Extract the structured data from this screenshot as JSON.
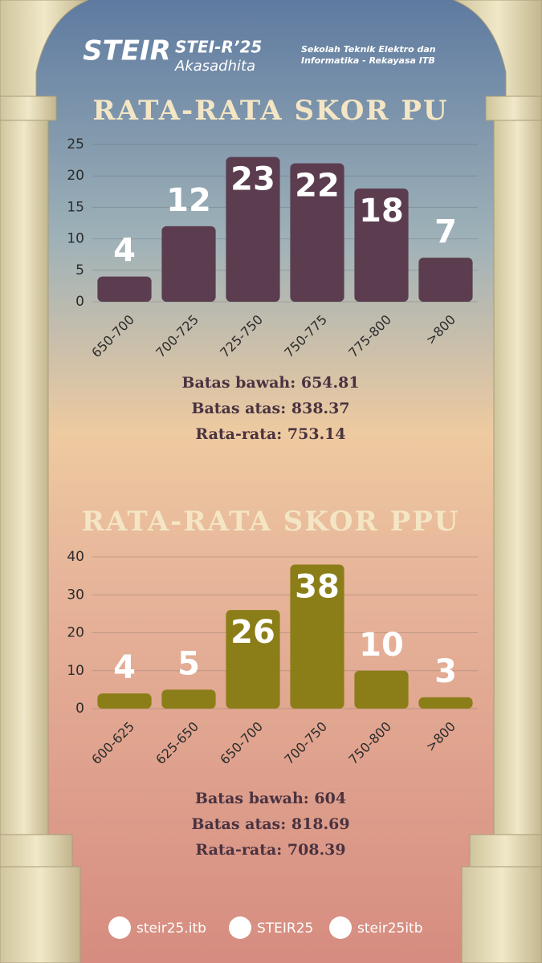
{
  "header": {
    "brand": "STEI-R’25",
    "subtitle": "Akasadhita",
    "logo": "STEIR",
    "institution": "Sekolah Teknik Elektro dan Informatika - Rekayasa ITB"
  },
  "chart_data": [
    {
      "type": "bar",
      "title": "RATA-RATA SKOR PU",
      "categories": [
        "650-700",
        "700-725",
        "725-750",
        "750-775",
        "775-800",
        ">800"
      ],
      "values": [
        4,
        12,
        23,
        22,
        18,
        7
      ],
      "color": "#5b3d4f",
      "ylim": [
        0,
        25
      ],
      "yticks": [
        0,
        5,
        10,
        15,
        20,
        25
      ],
      "grid": true,
      "annotations": [
        "Batas bawah: 654.81",
        "Batas atas: 838.37",
        "Rata-rata: 753.14"
      ]
    },
    {
      "type": "bar",
      "title": "RATA-RATA SKOR PPU",
      "categories": [
        "600-625",
        "625-650",
        "650-700",
        "700-750",
        "750-800",
        ">800"
      ],
      "values": [
        4,
        5,
        26,
        38,
        10,
        3
      ],
      "color": "#8b7e18",
      "ylim": [
        0,
        40
      ],
      "yticks": [
        0,
        10,
        20,
        30,
        40
      ],
      "grid": true,
      "annotations": [
        "Batas bawah: 604",
        "Batas atas: 818.69",
        "Rata-rata: 708.39"
      ]
    }
  ],
  "footer": {
    "instagram": "steir25.itb",
    "x": "STEIR25",
    "tiktok": "steir25itb"
  }
}
